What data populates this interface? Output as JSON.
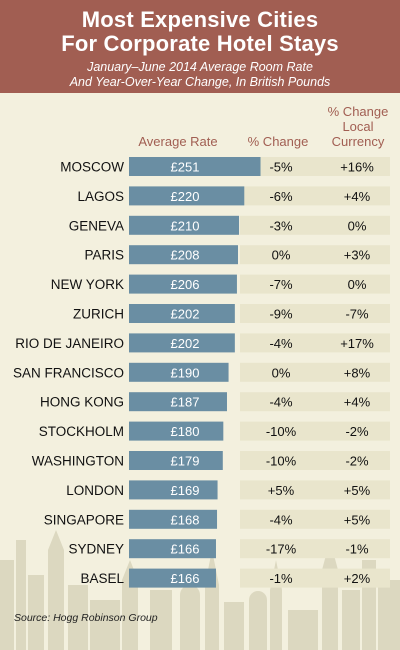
{
  "title_line1": "Most Expensive Cities",
  "title_line2": "For Corporate Hotel Stays",
  "subtitle_line1": "January–June 2014 Average Room Rate",
  "subtitle_line2": "And Year-Over-Year Change, In British Pounds",
  "col_avg": "Average Rate",
  "col_pct": "% Change",
  "col_local_1": "% Change",
  "col_local_2": "Local",
  "col_local_3": "Currency",
  "source": "Source: Hogg Robinson Group",
  "colors": {
    "header": "#a15e52",
    "bar": "#6a8ea3",
    "row_alt": "#e9e5cc",
    "background": "#f3f0de"
  },
  "chart_data": {
    "type": "bar",
    "orientation": "horizontal",
    "categories": [
      "MOSCOW",
      "LAGOS",
      "GENEVA",
      "PARIS",
      "NEW YORK",
      "ZURICH",
      "RIO DE JANEIRO",
      "SAN FRANCISCO",
      "HONG KONG",
      "STOCKHOLM",
      "WASHINGTON",
      "LONDON",
      "SINGAPORE",
      "SYDNEY",
      "BASEL"
    ],
    "values": [
      251,
      220,
      210,
      208,
      206,
      202,
      202,
      190,
      187,
      180,
      179,
      169,
      168,
      166,
      166
    ],
    "value_labels": [
      "£251",
      "£220",
      "£210",
      "£208",
      "£206",
      "£202",
      "£202",
      "£190",
      "£187",
      "£180",
      "£179",
      "£169",
      "£168",
      "£166",
      "£166"
    ],
    "pct_change": [
      "-5%",
      "-6%",
      "-3%",
      "0%",
      "-7%",
      "-9%",
      "-4%",
      "0%",
      "-4%",
      "-10%",
      "-10%",
      "+5%",
      "-4%",
      "-17%",
      "-1%"
    ],
    "pct_change_local": [
      "+16%",
      "+4%",
      "0%",
      "+3%",
      "0%",
      "-7%",
      "+17%",
      "+8%",
      "+4%",
      "-2%",
      "-2%",
      "+5%",
      "+5%",
      "-1%",
      "+2%"
    ]
  }
}
